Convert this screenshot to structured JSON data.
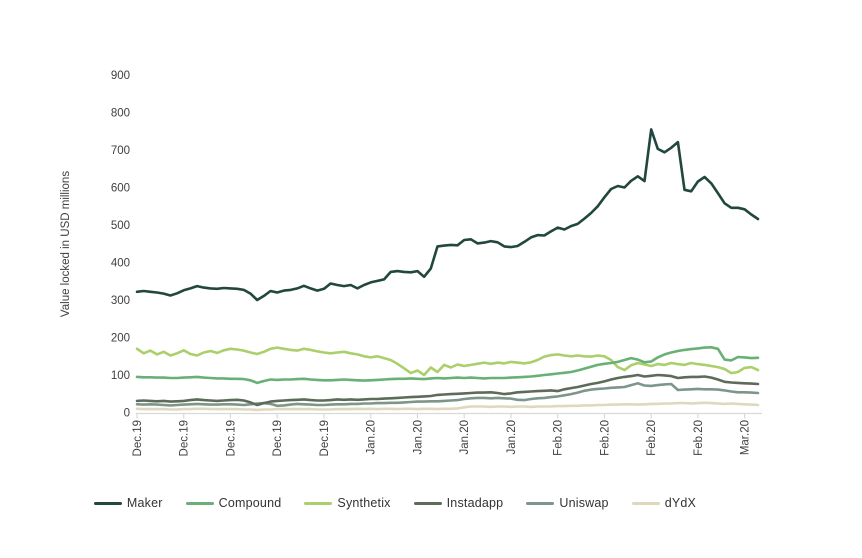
{
  "chart_data": {
    "type": "line",
    "title": "",
    "ylabel": "Value locked in USD millions",
    "ylim": [
      0,
      900
    ],
    "ytick_step": 100,
    "grid": false,
    "legend_position": "bottom",
    "axis_color": "#d9d9d9",
    "text_color": "#3f3f3f",
    "x_tick_labels": [
      "Dec.19",
      "Dec.19",
      "Dec.19",
      "Dec.19",
      "Dec.19",
      "Jan.20",
      "Jan.20",
      "Jan.20",
      "Jan.20",
      "Feb.20",
      "Feb.20",
      "Feb.20",
      "Feb.20",
      "Mar.20"
    ],
    "x_tick_every": 7,
    "n_points": 94,
    "series": [
      {
        "name": "Maker",
        "color": "#21473e",
        "values": [
          322,
          324,
          322,
          320,
          317,
          312,
          318,
          326,
          331,
          337,
          333,
          331,
          330,
          332,
          331,
          330,
          327,
          317,
          300,
          311,
          324,
          320,
          325,
          327,
          331,
          338,
          331,
          325,
          330,
          344,
          340,
          337,
          340,
          331,
          340,
          347,
          351,
          355,
          375,
          377,
          375,
          374,
          377,
          362,
          384,
          443,
          445,
          447,
          446,
          460,
          462,
          451,
          453,
          457,
          454,
          443,
          441,
          444,
          455,
          467,
          473,
          472,
          483,
          493,
          488,
          497,
          503,
          517,
          532,
          550,
          574,
          596,
          604,
          600,
          618,
          630,
          617,
          755,
          703,
          694,
          706,
          721,
          594,
          590,
          616,
          628,
          611,
          585,
          558,
          546,
          546,
          542,
          528,
          516
        ]
      },
      {
        "name": "Compound",
        "color": "#69b076",
        "values": [
          95,
          94,
          94,
          93,
          93,
          92,
          92,
          93,
          94,
          95,
          93,
          92,
          91,
          91,
          90,
          90,
          89,
          86,
          79,
          84,
          88,
          87,
          88,
          88,
          89,
          90,
          88,
          87,
          86,
          86,
          87,
          88,
          87,
          86,
          85,
          86,
          87,
          88,
          89,
          90,
          90,
          91,
          90,
          89,
          91,
          92,
          91,
          92,
          93,
          92,
          93,
          92,
          91,
          92,
          92,
          92,
          93,
          94,
          95,
          96,
          98,
          100,
          102,
          104,
          106,
          108,
          112,
          117,
          122,
          127,
          130,
          132,
          135,
          140,
          145,
          141,
          134,
          136,
          147,
          155,
          160,
          164,
          167,
          169,
          171,
          173,
          174,
          170,
          141,
          139,
          148,
          147,
          145,
          146
        ]
      },
      {
        "name": "Synthetix",
        "color": "#aacf6b",
        "values": [
          170,
          158,
          165,
          155,
          162,
          152,
          158,
          166,
          156,
          152,
          160,
          164,
          159,
          166,
          170,
          168,
          165,
          160,
          156,
          162,
          170,
          173,
          170,
          167,
          165,
          170,
          167,
          163,
          160,
          158,
          160,
          162,
          158,
          155,
          150,
          147,
          150,
          145,
          140,
          130,
          118,
          105,
          112,
          100,
          120,
          108,
          127,
          120,
          128,
          124,
          127,
          130,
          133,
          130,
          133,
          131,
          135,
          133,
          131,
          134,
          140,
          149,
          153,
          155,
          152,
          150,
          152,
          150,
          149,
          152,
          150,
          140,
          121,
          113,
          126,
          132,
          128,
          124,
          129,
          127,
          132,
          129,
          127,
          132,
          129,
          127,
          124,
          121,
          116,
          105,
          108,
          119,
          121,
          113
        ]
      },
      {
        "name": "Instadapp",
        "color": "#5c6c59",
        "values": [
          31,
          32,
          31,
          30,
          31,
          29,
          30,
          31,
          33,
          35,
          33,
          32,
          31,
          32,
          33,
          34,
          32,
          27,
          20,
          25,
          29,
          31,
          32,
          33,
          34,
          35,
          33,
          32,
          32,
          33,
          35,
          34,
          35,
          34,
          35,
          36,
          36,
          37,
          38,
          39,
          40,
          41,
          42,
          43,
          44,
          47,
          48,
          49,
          50,
          51,
          52,
          53,
          53,
          54,
          52,
          49,
          51,
          54,
          55,
          56,
          57,
          58,
          59,
          57,
          62,
          65,
          68,
          72,
          76,
          79,
          83,
          88,
          92,
          95,
          97,
          100,
          96,
          98,
          100,
          99,
          97,
          92,
          94,
          95,
          95,
          96,
          93,
          88,
          82,
          80,
          79,
          78,
          77,
          76
        ]
      },
      {
        "name": "Uniswap",
        "color": "#7d968a",
        "values": [
          22,
          21,
          22,
          21,
          20,
          19,
          20,
          21,
          22,
          23,
          22,
          21,
          21,
          22,
          22,
          21,
          20,
          22,
          24,
          25,
          23,
          18,
          19,
          21,
          23,
          22,
          21,
          20,
          20,
          21,
          22,
          22,
          23,
          23,
          24,
          24,
          25,
          25,
          26,
          26,
          27,
          28,
          29,
          29,
          30,
          30,
          31,
          32,
          33,
          36,
          38,
          39,
          39,
          38,
          39,
          38,
          37,
          34,
          33,
          36,
          38,
          39,
          41,
          43,
          46,
          49,
          53,
          58,
          61,
          63,
          64,
          66,
          67,
          68,
          73,
          78,
          72,
          71,
          73,
          75,
          76,
          60,
          61,
          62,
          63,
          62,
          62,
          61,
          59,
          56,
          54,
          54,
          53,
          52
        ]
      },
      {
        "name": "dYdX",
        "color": "#ded8bd",
        "values": [
          10,
          9,
          9,
          9,
          9,
          8,
          8,
          9,
          9,
          10,
          10,
          9,
          9,
          9,
          9,
          9,
          8,
          8,
          7,
          8,
          8,
          9,
          9,
          9,
          9,
          9,
          9,
          8,
          8,
          8,
          9,
          9,
          9,
          10,
          9,
          10,
          9,
          10,
          10,
          9,
          10,
          10,
          9,
          10,
          10,
          9,
          10,
          10,
          11,
          14,
          16,
          16,
          16,
          15,
          16,
          16,
          15,
          16,
          16,
          15,
          16,
          16,
          16,
          17,
          17,
          18,
          18,
          19,
          19,
          20,
          20,
          21,
          21,
          22,
          22,
          21,
          22,
          23,
          23,
          24,
          24,
          25,
          25,
          24,
          25,
          26,
          25,
          24,
          23,
          24,
          23,
          22,
          21,
          20
        ]
      }
    ]
  }
}
